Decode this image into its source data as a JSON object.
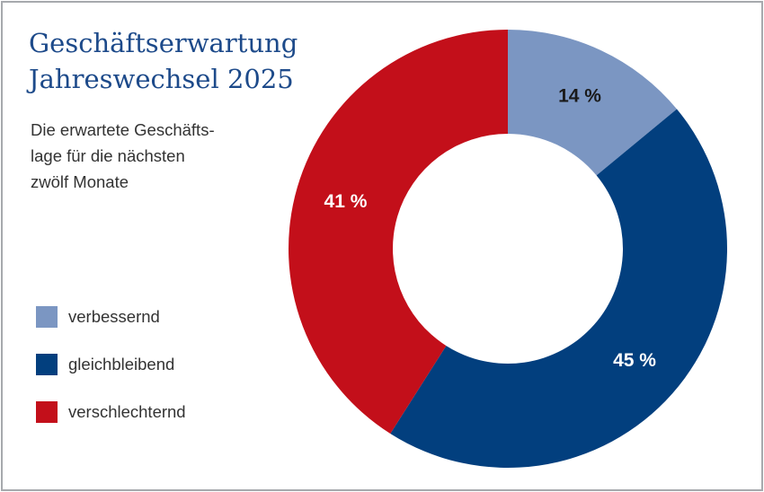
{
  "title_lines": [
    "Geschäftserwartung",
    "Jahreswechsel 2025"
  ],
  "subtitle_lines": [
    "Die erwartete Geschäfts-",
    "lage für die nächsten",
    "zwölf Monate"
  ],
  "chart_data": {
    "type": "pie",
    "title": "Geschäftserwartung Jahreswechsel 2025",
    "subtitle": "Die erwartete Geschäftslage für die nächsten zwölf Monate",
    "donut": true,
    "legend_position": "left",
    "slices": [
      {
        "label": "verbessernd",
        "value": 14,
        "display": "14 %",
        "color": "#7b96c2",
        "label_color": "#1a1a1a"
      },
      {
        "label": "gleichbleibend",
        "value": 45,
        "display": "45 %",
        "color": "#023f7e",
        "label_color": "#ffffff"
      },
      {
        "label": "verschlechternd",
        "value": 41,
        "display": "41 %",
        "color": "#c30f1a",
        "label_color": "#ffffff"
      }
    ]
  }
}
